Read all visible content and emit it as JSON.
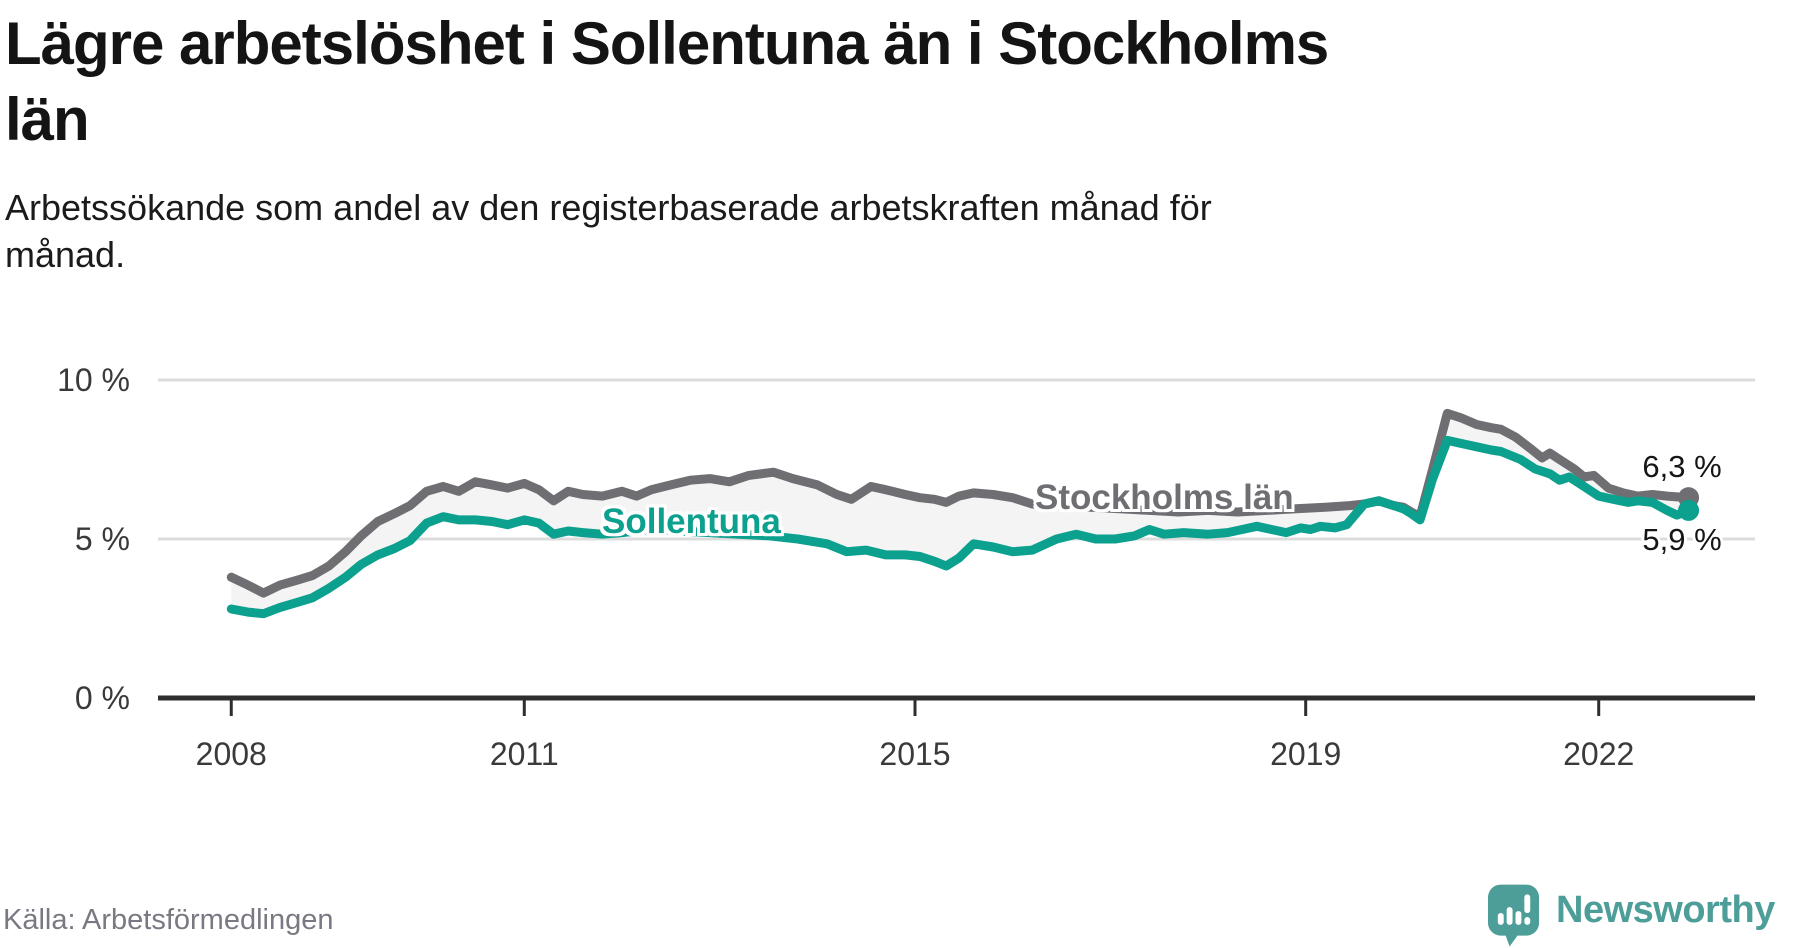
{
  "header": {
    "title": "Lägre arbetslöshet i Sollentuna än i Stockholms län",
    "title_lines": [
      "Lägre arbetslöshet i Sollentuna än i Stockholms",
      "län"
    ],
    "subtitle": "Arbetssökande som andel av den registerbaserade arbetskraften månad för månad.",
    "subtitle_lines": [
      "Arbetssökande som andel av den registerbaserade arbetskraften månad för",
      "månad."
    ]
  },
  "footer": {
    "source": "Källa: Arbetsförmedlingen",
    "brand": "Newsworthy",
    "brand_color": "#4d9e99"
  },
  "chart_data": {
    "type": "line",
    "title": "Lägre arbetslöshet i Sollentuna än i Stockholms län",
    "subtitle": "Arbetssökande som andel av den registerbaserade arbetskraften månad för månad.",
    "source": "Källa: Arbetsförmedlingen",
    "unit": "%",
    "xlim": [
      2007.25,
      2023.6
    ],
    "ylim": [
      0,
      10
    ],
    "grid": "horizontal",
    "legend_position": "inline-labels",
    "grid_color": "#dcdcdc",
    "axis_color": "#2e2e2e",
    "tick_label_color": "#3a3a3a",
    "area_fill_color": "#f4f4f4",
    "y_ticks": [
      {
        "value": 0,
        "label": "0 %"
      },
      {
        "value": 5,
        "label": "5 %"
      },
      {
        "value": 10,
        "label": "10 %"
      }
    ],
    "x_ticks": [
      {
        "value": 2008,
        "label": "2008"
      },
      {
        "value": 2011,
        "label": "2011"
      },
      {
        "value": 2015,
        "label": "2015"
      },
      {
        "value": 2019,
        "label": "2019"
      },
      {
        "value": 2022,
        "label": "2022"
      }
    ],
    "series": [
      {
        "name": "Stockholms län",
        "color": "#6e6e73",
        "end_label": "6,3 %",
        "end_value": 6.3,
        "points": [
          [
            2008.0,
            3.8
          ],
          [
            2008.17,
            3.55
          ],
          [
            2008.33,
            3.3
          ],
          [
            2008.5,
            3.55
          ],
          [
            2008.67,
            3.7
          ],
          [
            2008.83,
            3.85
          ],
          [
            2009.0,
            4.15
          ],
          [
            2009.17,
            4.6
          ],
          [
            2009.33,
            5.1
          ],
          [
            2009.5,
            5.55
          ],
          [
            2009.67,
            5.8
          ],
          [
            2009.83,
            6.05
          ],
          [
            2010.0,
            6.5
          ],
          [
            2010.17,
            6.65
          ],
          [
            2010.33,
            6.5
          ],
          [
            2010.5,
            6.8
          ],
          [
            2010.67,
            6.7
          ],
          [
            2010.83,
            6.6
          ],
          [
            2011.0,
            6.75
          ],
          [
            2011.15,
            6.55
          ],
          [
            2011.3,
            6.2
          ],
          [
            2011.45,
            6.5
          ],
          [
            2011.6,
            6.4
          ],
          [
            2011.8,
            6.35
          ],
          [
            2012.0,
            6.5
          ],
          [
            2012.15,
            6.35
          ],
          [
            2012.3,
            6.55
          ],
          [
            2012.5,
            6.7
          ],
          [
            2012.7,
            6.85
          ],
          [
            2012.9,
            6.9
          ],
          [
            2013.1,
            6.8
          ],
          [
            2013.3,
            7.0
          ],
          [
            2013.55,
            7.1
          ],
          [
            2013.75,
            6.9
          ],
          [
            2014.0,
            6.7
          ],
          [
            2014.2,
            6.4
          ],
          [
            2014.35,
            6.25
          ],
          [
            2014.55,
            6.65
          ],
          [
            2014.7,
            6.55
          ],
          [
            2014.9,
            6.4
          ],
          [
            2015.05,
            6.3
          ],
          [
            2015.2,
            6.25
          ],
          [
            2015.32,
            6.15
          ],
          [
            2015.45,
            6.35
          ],
          [
            2015.6,
            6.45
          ],
          [
            2015.8,
            6.4
          ],
          [
            2016.0,
            6.3
          ],
          [
            2016.2,
            6.1
          ],
          [
            2016.5,
            6.05
          ],
          [
            2016.8,
            6.0
          ],
          [
            2017.1,
            5.95
          ],
          [
            2017.4,
            5.9
          ],
          [
            2017.7,
            5.85
          ],
          [
            2018.0,
            5.9
          ],
          [
            2018.3,
            5.85
          ],
          [
            2018.6,
            5.9
          ],
          [
            2018.9,
            5.95
          ],
          [
            2019.2,
            6.0
          ],
          [
            2019.45,
            6.05
          ],
          [
            2019.6,
            6.1
          ],
          [
            2019.75,
            6.2
          ],
          [
            2019.9,
            6.05
          ],
          [
            2020.0,
            6.0
          ],
          [
            2020.08,
            5.85
          ],
          [
            2020.17,
            5.7
          ],
          [
            2020.3,
            7.2
          ],
          [
            2020.45,
            8.95
          ],
          [
            2020.6,
            8.8
          ],
          [
            2020.75,
            8.6
          ],
          [
            2020.9,
            8.5
          ],
          [
            2021.0,
            8.45
          ],
          [
            2021.15,
            8.2
          ],
          [
            2021.3,
            7.85
          ],
          [
            2021.42,
            7.55
          ],
          [
            2021.5,
            7.7
          ],
          [
            2021.6,
            7.5
          ],
          [
            2021.75,
            7.2
          ],
          [
            2021.85,
            6.95
          ],
          [
            2021.95,
            7.0
          ],
          [
            2022.1,
            6.6
          ],
          [
            2022.25,
            6.45
          ],
          [
            2022.4,
            6.35
          ],
          [
            2022.55,
            6.4
          ],
          [
            2022.7,
            6.35
          ],
          [
            2022.92,
            6.3
          ]
        ]
      },
      {
        "name": "Sollentuna",
        "color": "#0ca08e",
        "end_label": "5,9 %",
        "end_value": 5.9,
        "points": [
          [
            2008.0,
            2.8
          ],
          [
            2008.17,
            2.7
          ],
          [
            2008.33,
            2.65
          ],
          [
            2008.5,
            2.85
          ],
          [
            2008.67,
            3.0
          ],
          [
            2008.83,
            3.15
          ],
          [
            2009.0,
            3.45
          ],
          [
            2009.17,
            3.8
          ],
          [
            2009.33,
            4.2
          ],
          [
            2009.5,
            4.5
          ],
          [
            2009.67,
            4.7
          ],
          [
            2009.83,
            4.95
          ],
          [
            2010.0,
            5.5
          ],
          [
            2010.17,
            5.7
          ],
          [
            2010.33,
            5.6
          ],
          [
            2010.5,
            5.6
          ],
          [
            2010.67,
            5.55
          ],
          [
            2010.83,
            5.45
          ],
          [
            2011.0,
            5.6
          ],
          [
            2011.15,
            5.5
          ],
          [
            2011.3,
            5.15
          ],
          [
            2011.45,
            5.25
          ],
          [
            2011.6,
            5.2
          ],
          [
            2011.8,
            5.15
          ],
          [
            2012.0,
            5.2
          ],
          [
            2012.3,
            5.3
          ],
          [
            2012.6,
            5.25
          ],
          [
            2012.9,
            5.2
          ],
          [
            2013.2,
            5.15
          ],
          [
            2013.5,
            5.1
          ],
          [
            2013.8,
            5.0
          ],
          [
            2014.1,
            4.85
          ],
          [
            2014.3,
            4.6
          ],
          [
            2014.5,
            4.65
          ],
          [
            2014.7,
            4.5
          ],
          [
            2014.9,
            4.5
          ],
          [
            2015.05,
            4.45
          ],
          [
            2015.2,
            4.3
          ],
          [
            2015.32,
            4.15
          ],
          [
            2015.45,
            4.4
          ],
          [
            2015.6,
            4.85
          ],
          [
            2015.8,
            4.75
          ],
          [
            2016.0,
            4.6
          ],
          [
            2016.2,
            4.65
          ],
          [
            2016.45,
            5.0
          ],
          [
            2016.65,
            5.15
          ],
          [
            2016.85,
            5.0
          ],
          [
            2017.05,
            5.0
          ],
          [
            2017.25,
            5.1
          ],
          [
            2017.4,
            5.3
          ],
          [
            2017.55,
            5.15
          ],
          [
            2017.75,
            5.2
          ],
          [
            2018.0,
            5.15
          ],
          [
            2018.2,
            5.2
          ],
          [
            2018.35,
            5.3
          ],
          [
            2018.5,
            5.4
          ],
          [
            2018.65,
            5.3
          ],
          [
            2018.8,
            5.2
          ],
          [
            2018.95,
            5.35
          ],
          [
            2019.05,
            5.3
          ],
          [
            2019.15,
            5.4
          ],
          [
            2019.3,
            5.35
          ],
          [
            2019.42,
            5.45
          ],
          [
            2019.6,
            6.1
          ],
          [
            2019.75,
            6.2
          ],
          [
            2019.85,
            6.1
          ],
          [
            2020.0,
            5.95
          ],
          [
            2020.08,
            5.8
          ],
          [
            2020.17,
            5.6
          ],
          [
            2020.3,
            6.9
          ],
          [
            2020.45,
            8.1
          ],
          [
            2020.6,
            8.0
          ],
          [
            2020.75,
            7.9
          ],
          [
            2020.9,
            7.8
          ],
          [
            2021.0,
            7.75
          ],
          [
            2021.2,
            7.5
          ],
          [
            2021.35,
            7.2
          ],
          [
            2021.5,
            7.05
          ],
          [
            2021.6,
            6.85
          ],
          [
            2021.7,
            6.95
          ],
          [
            2021.85,
            6.65
          ],
          [
            2022.0,
            6.35
          ],
          [
            2022.15,
            6.25
          ],
          [
            2022.3,
            6.15
          ],
          [
            2022.4,
            6.2
          ],
          [
            2022.55,
            6.15
          ],
          [
            2022.7,
            5.9
          ],
          [
            2022.8,
            5.75
          ],
          [
            2022.92,
            5.9
          ]
        ]
      }
    ]
  }
}
